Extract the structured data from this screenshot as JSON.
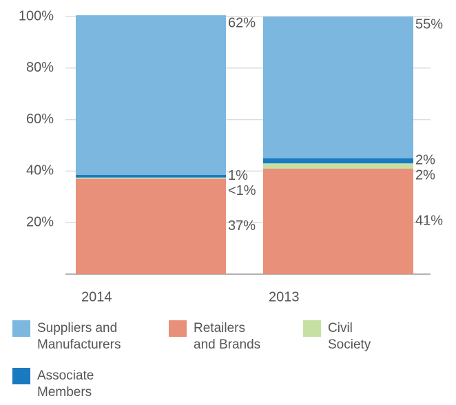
{
  "chart_data": {
    "type": "stacked_bar",
    "categories": [
      "2014",
      "2013"
    ],
    "series": [
      {
        "name": "Retailers and Brands",
        "color": "#e8907a",
        "values": [
          37,
          41
        ],
        "value_labels": [
          "37%",
          "41%"
        ]
      },
      {
        "name": "Civil Society",
        "color": "#c6e0a4",
        "values": [
          0.5,
          2
        ],
        "value_labels": [
          "<1%",
          "2%"
        ]
      },
      {
        "name": "Associate Members",
        "color": "#1a7abf",
        "values": [
          1,
          2
        ],
        "value_labels": [
          "1%",
          "2%"
        ]
      },
      {
        "name": "Suppliers and Manufacturers",
        "color": "#7bb7de",
        "values": [
          62,
          55
        ],
        "value_labels": [
          "62%",
          "55%"
        ]
      }
    ],
    "ylim": [
      0,
      100
    ],
    "yticks": [
      {
        "value": 20,
        "label": "20%"
      },
      {
        "value": 40,
        "label": "40%"
      },
      {
        "value": 60,
        "label": "60%"
      },
      {
        "value": 80,
        "label": "80%"
      },
      {
        "value": 100,
        "label": "100%"
      }
    ],
    "grid": true
  }
}
